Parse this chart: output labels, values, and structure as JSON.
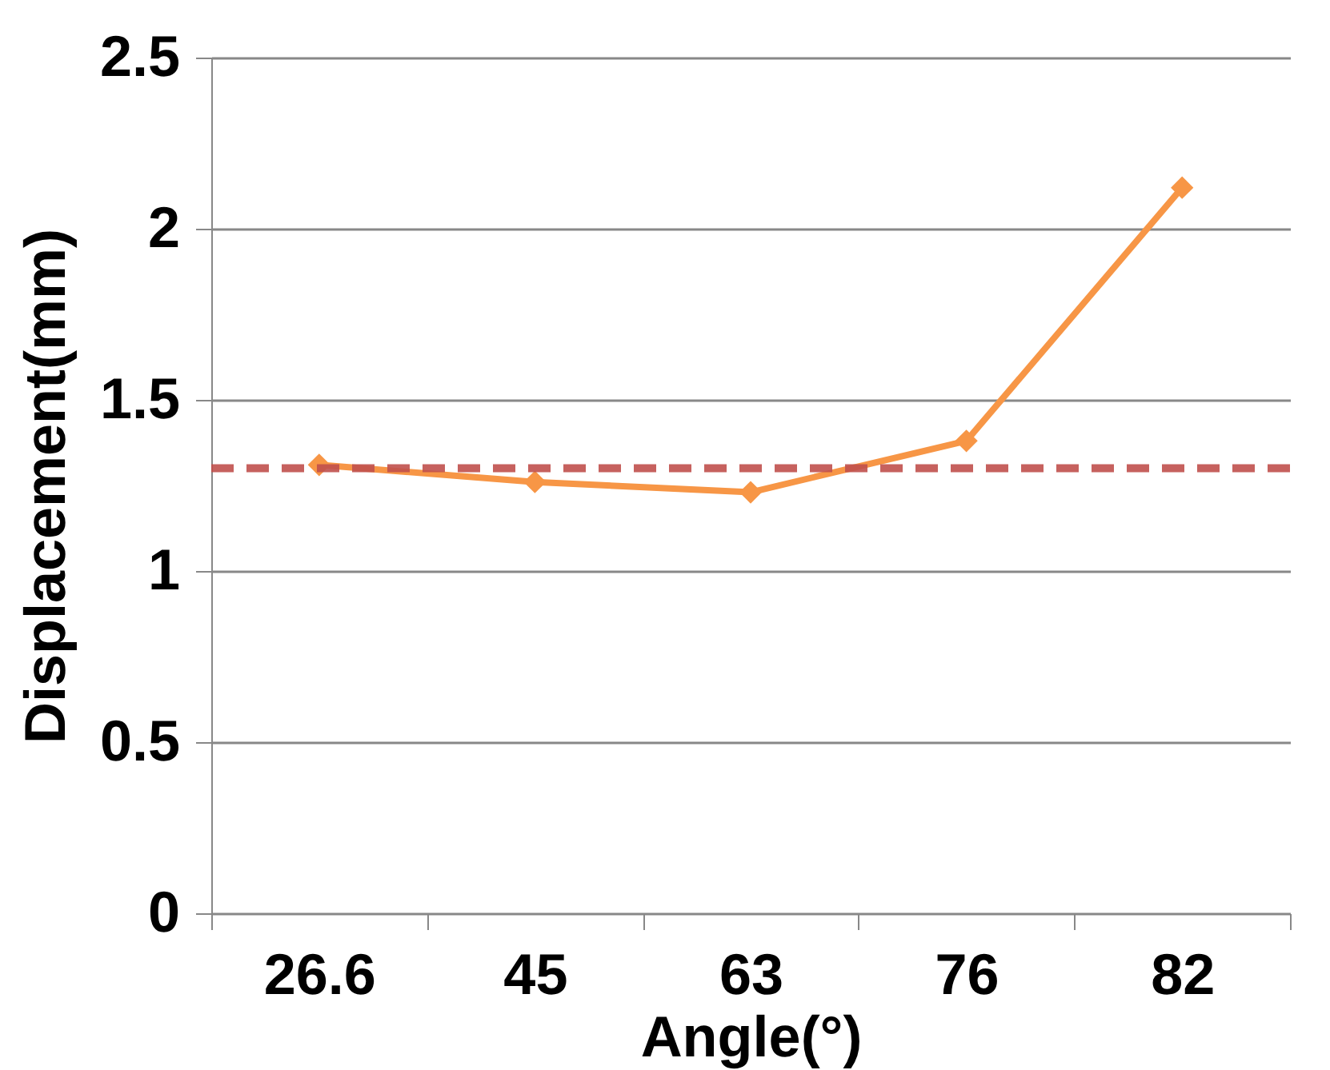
{
  "chart_data": {
    "type": "line",
    "xlabel": "Angle(°)",
    "ylabel": "Displacement(mm)",
    "categories": [
      "26.6",
      "45",
      "63",
      "76",
      "82"
    ],
    "series": [
      {
        "color": "#f79646",
        "values": [
          1.31,
          1.26,
          1.23,
          1.38,
          2.12
        ]
      }
    ],
    "ylim": [
      0,
      2.5
    ],
    "yticks": [
      0,
      0.5,
      1,
      1.5,
      2,
      2.5
    ],
    "grid": "y",
    "marker": "diamond",
    "line_style": "solid",
    "ref_lines": [
      {
        "axis": "y",
        "value": 1.3,
        "color": "#c0504d",
        "line_style": "dashed"
      }
    ]
  }
}
